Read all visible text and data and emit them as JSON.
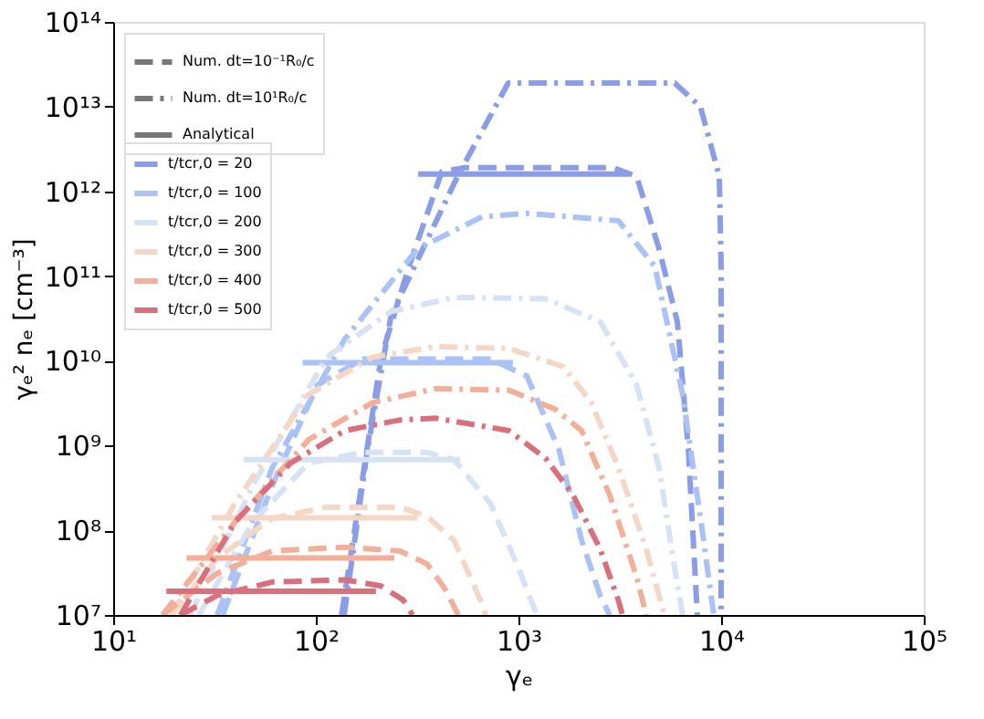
{
  "chart_data": {
    "type": "line",
    "xlabel": "γₑ",
    "ylabel": "γₑ² nₑ [cm⁻³]",
    "log": "xy",
    "grid": false,
    "legend": "top left",
    "xlim": [
      10,
      100000
    ],
    "ylim": [
      10000000,
      100000000000000
    ],
    "xticks": [
      {
        "value": 10,
        "label": "10¹"
      },
      {
        "value": 100,
        "label": "10²"
      },
      {
        "value": 1000,
        "label": "10³"
      },
      {
        "value": 10000,
        "label": "10⁴"
      },
      {
        "value": 100000,
        "label": "10⁵"
      }
    ],
    "yticks": [
      {
        "value": 10000000.0,
        "label": "10⁷"
      },
      {
        "value": 100000000.0,
        "label": "10⁸"
      },
      {
        "value": 1000000000.0,
        "label": "10⁹"
      },
      {
        "value": 10000000000.0,
        "label": "10¹⁰"
      },
      {
        "value": 100000000000.0,
        "label": "10¹¹"
      },
      {
        "value": 1000000000000.0,
        "label": "10¹²"
      },
      {
        "value": 10000000000000.0,
        "label": "10¹³"
      },
      {
        "value": 100000000000000.0,
        "label": "10¹⁴"
      }
    ],
    "annotations": [
      "Num. dt=10⁻¹R₀/c",
      "Num. dt=10¹R₀/c",
      "Analytical"
    ],
    "series": [
      {
        "color": "#8a9de6",
        "line_style": "dashed",
        "x": [
          134,
          210,
          288,
          418,
          537,
          2940,
          3830,
          4940,
          6080,
          6890,
          7630
        ],
        "values": [
          10000000.0,
          11000000000.0,
          130000000000.0,
          1700000000000.0,
          1900000000000.0,
          1900000000000.0,
          1500000000000.0,
          210000000000.0,
          29000000000.0,
          910000000.0,
          10000000.0
        ]
      },
      {
        "color": "#8a9de6",
        "line_style": "dashdot",
        "x": [
          138,
          180,
          235,
          500,
          890,
          5900,
          7900,
          9800,
          10000,
          10000
        ],
        "values": [
          10000000.0,
          910000000.0,
          34000000000.0,
          1500000000000.0,
          19000000000000.0,
          19000000000000.0,
          10000000000000.0,
          1500000000000.0,
          130000000000.0,
          10000000.0
        ]
      },
      {
        "name": "t/tcr,0 = 20",
        "color": "#8a9de6",
        "line_style": "solid",
        "x": [
          320,
          3500
        ],
        "values": [
          1600000000000.0,
          1600000000000.0
        ]
      },
      {
        "color": "#aac2f6",
        "line_style": "dashed",
        "x": [
          34.7,
          61,
          102,
          171,
          729,
          1100,
          1580,
          2050,
          2530,
          2820
        ],
        "values": [
          10000000.0,
          340000000.0,
          5200000000.0,
          10500000000.0,
          10500000000.0,
          6600000000.0,
          910000000.0,
          76000000.0,
          17000000.0,
          10000000.0
        ]
      },
      {
        "color": "#aac2f6",
        "line_style": "dashdot",
        "x": [
          32.6,
          61,
          139,
          318,
          661,
          1100,
          3110,
          4710,
          6460,
          7960,
          9200
        ],
        "values": [
          10000000.0,
          550000000.0,
          18000000000.0,
          210000000000.0,
          500000000000.0,
          550000000000.0,
          450000000000.0,
          130000000000.0,
          4000000000.0,
          126000000.0,
          10000000.0
        ]
      },
      {
        "name": "t/tcr,0 = 100",
        "color": "#aac2f6",
        "line_style": "solid",
        "x": [
          86,
          940
        ],
        "values": [
          9500000000.0,
          9500000000.0
        ]
      },
      {
        "color": "#d8e2f5",
        "line_style": "dashed",
        "x": [
          26.5,
          49,
          92,
          171,
          354,
          481,
          729,
          1000,
          1230
        ],
        "values": [
          10000000.0,
          126000000.0,
          620000000.0,
          830000000.0,
          830000000.0,
          680000000.0,
          205000000.0,
          36000000.0,
          10000000.0
        ]
      },
      {
        "color": "#d8e2f5",
        "line_style": "dashdot",
        "x": [
          24,
          49,
          113,
          234,
          481,
          1360,
          2530,
          3830,
          4940,
          5800,
          6460
        ],
        "values": [
          10000000.0,
          340000000.0,
          11000000000.0,
          38000000000.0,
          56000000000.0,
          54000000000.0,
          29000000000.0,
          5200000000.0,
          550000000.0,
          46000000.0,
          10000000.0
        ]
      },
      {
        "name": "t/tcr,0 = 200",
        "color": "#d8e2f5",
        "line_style": "solid",
        "x": [
          44,
          515
        ],
        "values": [
          680000000.0,
          680000000.0
        ]
      },
      {
        "color": "#f5d7c8",
        "line_style": "dashed",
        "x": [
          19.4,
          32.6,
          61,
          113,
          259,
          354,
          481,
          661,
          689
        ],
        "values": [
          10000000.0,
          47000000.0,
          138000000.0,
          187000000.0,
          187000000.0,
          146000000.0,
          76000000.0,
          13500000.0,
          10000000.0
        ]
      },
      {
        "color": "#f5d7c8",
        "line_style": "dashdot",
        "x": [
          19.4,
          40,
          92,
          190,
          391,
          897,
          1670,
          2290,
          3110,
          4270,
          5250
        ],
        "values": [
          10000000.0,
          210000000.0,
          4000000000.0,
          11000000000.0,
          14700000000.0,
          14000000000.0,
          8500000000.0,
          3200000000.0,
          550000000.0,
          60000000.0,
          10000000.0
        ]
      },
      {
        "name": "t/tcr,0 = 300",
        "color": "#f5d7c8",
        "line_style": "solid",
        "x": [
          30.6,
          318
        ],
        "values": [
          140000000.0,
          140000000.0
        ]
      },
      {
        "color": "#f2b09a",
        "line_style": "dashed",
        "x": [
          17.5,
          32.6,
          61,
          139,
          259,
          354,
          436,
          505
        ],
        "values": [
          10000000.0,
          31000000.0,
          57000000.0,
          63000000.0,
          57000000.0,
          40000000.0,
          20000000.0,
          10000000.0
        ]
      },
      {
        "color": "#f2b09a",
        "line_style": "dashdot",
        "x": [
          17.5,
          40,
          92,
          190,
          391,
          897,
          1510,
          2050,
          2820,
          3830,
          4270
        ],
        "values": [
          10000000.0,
          126000000.0,
          1170000000.0,
          3200000000.0,
          4700000000.0,
          4500000000.0,
          2700000000.0,
          1500000000.0,
          260000000.0,
          28000000.0,
          10000000.0
        ]
      },
      {
        "name": "t/tcr,0 = 400",
        "color": "#f2b09a",
        "line_style": "solid",
        "x": [
          23,
          244
        ],
        "values": [
          47000000.0,
          47000000.0
        ]
      },
      {
        "color": "#d9707e",
        "line_style": "dashed",
        "x": [
          21.5,
          32.6,
          61,
          139,
          210,
          270,
          300
        ],
        "values": [
          10000000.0,
          17000000.0,
          24500000.0,
          26000000.0,
          22000000.0,
          15000000.0,
          10000000.0
        ]
      },
      {
        "color": "#d9707e",
        "line_style": "dashdot",
        "x": [
          21.5,
          40,
          75,
          139,
          259,
          391,
          897,
          1360,
          1860,
          2530,
          3110,
          3260
        ],
        "values": [
          10000000.0,
          126000000.0,
          620000000.0,
          1500000000.0,
          2000000000.0,
          2100000000.0,
          1500000000.0,
          710000000.0,
          260000000.0,
          60000000.0,
          15000000.0,
          10000000.0
        ]
      },
      {
        "name": "t/tcr,0 = 500",
        "color": "#d9707e",
        "line_style": "solid",
        "x": [
          18.3,
          198
        ],
        "values": [
          19000000.0,
          19000000.0
        ]
      }
    ]
  }
}
